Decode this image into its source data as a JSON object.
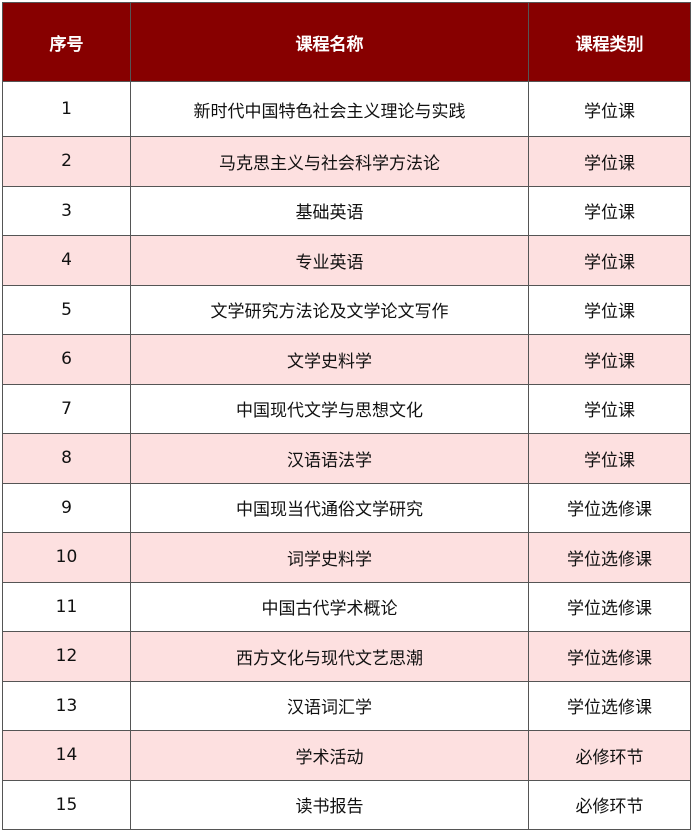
{
  "header": [
    "序号",
    "课程名称",
    "课程类别"
  ],
  "colors": {
    "header_bg": "#870000",
    "alt_row_bg": "#fde0e0"
  },
  "rows": [
    [
      "1",
      "新时代中国特色社会主义理论与实践",
      "学位课"
    ],
    [
      "2",
      "马克思主义与社会科学方法论",
      "学位课"
    ],
    [
      "3",
      "基础英语",
      "学位课"
    ],
    [
      "4",
      "专业英语",
      "学位课"
    ],
    [
      "5",
      "文学研究方法论及文学论文写作",
      "学位课"
    ],
    [
      "6",
      "文学史料学",
      "学位课"
    ],
    [
      "7",
      "中国现代文学与思想文化",
      "学位课"
    ],
    [
      "8",
      "汉语语法学",
      "学位课"
    ],
    [
      "9",
      "中国现当代通俗文学研究",
      "学位选修课"
    ],
    [
      "10",
      "词学史料学",
      "学位选修课"
    ],
    [
      "11",
      "中国古代学术概论",
      "学位选修课"
    ],
    [
      "12",
      "西方文化与现代文艺思潮",
      "学位选修课"
    ],
    [
      "13",
      "汉语词汇学",
      "学位选修课"
    ],
    [
      "14",
      "学术活动",
      "必修环节"
    ],
    [
      "15",
      "读书报告",
      "必修环节"
    ]
  ]
}
